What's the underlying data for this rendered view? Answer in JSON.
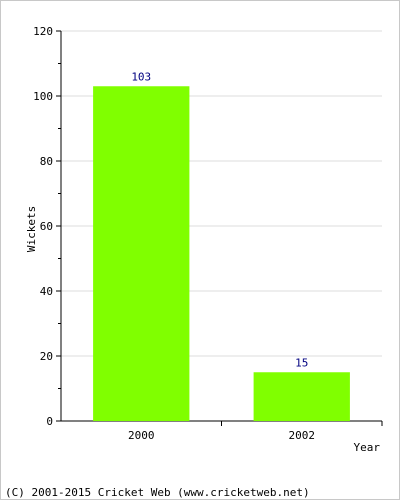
{
  "chart_data": {
    "type": "bar",
    "categories": [
      "2000",
      "2002"
    ],
    "values": [
      103,
      15
    ],
    "title": "",
    "xlabel": "Year",
    "ylabel": "Wickets",
    "ylim": [
      0,
      120
    ],
    "yticks": [
      0,
      20,
      40,
      60,
      80,
      100,
      120
    ],
    "grid": true,
    "legend": "none",
    "bar_color": "#80ff00",
    "label_color": "#000080",
    "grid_color": "#dcdcdc"
  },
  "footer": {
    "copyright": "(C) 2001-2015 Cricket Web (www.cricketweb.net)"
  }
}
